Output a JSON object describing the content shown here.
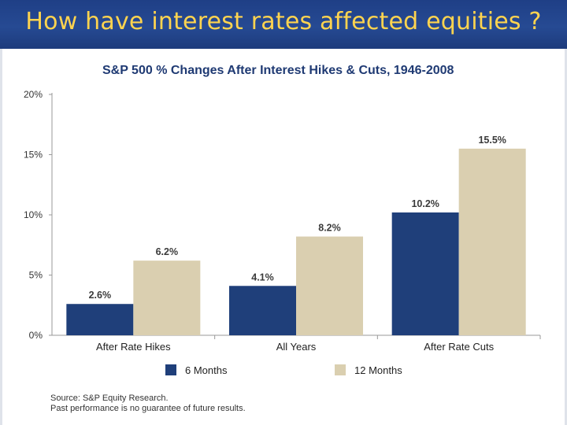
{
  "header": {
    "title": "How have interest rates affected equities ?"
  },
  "chart_data": {
    "type": "bar",
    "title": "S&P 500 % Changes After Interest Hikes & Cuts, 1946-2008",
    "categories": [
      "After Rate Hikes",
      "All Years",
      "After Rate Cuts"
    ],
    "series": [
      {
        "name": "6 Months",
        "values": [
          2.6,
          4.1,
          10.2
        ],
        "labels": [
          "2.6%",
          "4.1%",
          "10.2%"
        ],
        "color": "#1f3f7a"
      },
      {
        "name": "12 Months",
        "values": [
          6.2,
          8.2,
          15.5
        ],
        "labels": [
          "6.2%",
          "8.2%",
          "15.5%"
        ],
        "color": "#dacfb0"
      }
    ],
    "ylim": [
      0,
      20
    ],
    "yticks": [
      0,
      5,
      10,
      15,
      20
    ],
    "ytick_labels": [
      "0%",
      "5%",
      "10%",
      "15%",
      "20%"
    ],
    "xlabel": "",
    "ylabel": "",
    "legend_position": "bottom"
  },
  "footnote": {
    "source": "Source:  S&P Equity Research.",
    "disclaimer": "Past performance is no guarantee of future results."
  }
}
